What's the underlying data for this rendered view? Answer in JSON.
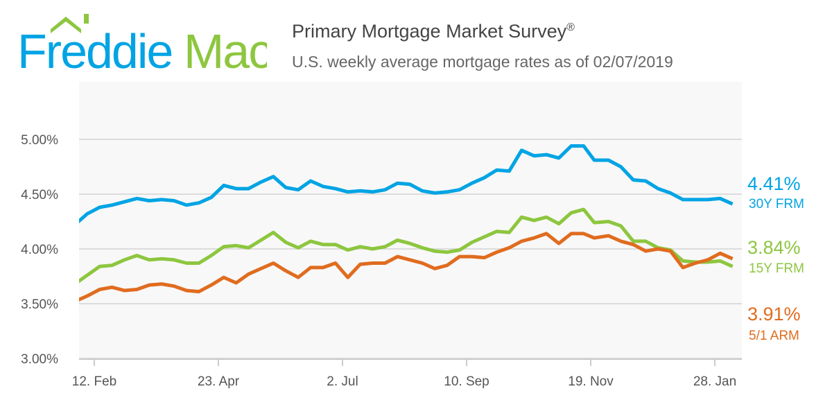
{
  "logo": {
    "text_part1": "Freddie",
    "text_part2": "Mac",
    "colors": {
      "blue": "#00a4e4",
      "green": "#8dc63f"
    }
  },
  "header": {
    "title": "Primary Mortgage Market Survey",
    "title_mark": "®",
    "subtitle": "U.S. weekly average mortgage rates as of 02/07/2019"
  },
  "chart_data": {
    "type": "line",
    "title": "Primary Mortgage Market Survey®",
    "subtitle": "U.S. weekly average mortgage rates as of 02/07/2019",
    "x": [
      "2018-02-01",
      "2018-02-08",
      "2018-02-15",
      "2018-02-22",
      "2018-03-01",
      "2018-03-08",
      "2018-03-15",
      "2018-03-22",
      "2018-03-29",
      "2018-04-05",
      "2018-04-12",
      "2018-04-19",
      "2018-04-26",
      "2018-05-03",
      "2018-05-10",
      "2018-05-17",
      "2018-05-24",
      "2018-05-31",
      "2018-06-07",
      "2018-06-14",
      "2018-06-21",
      "2018-06-28",
      "2018-07-05",
      "2018-07-12",
      "2018-07-19",
      "2018-07-26",
      "2018-08-02",
      "2018-08-09",
      "2018-08-16",
      "2018-08-23",
      "2018-08-30",
      "2018-09-06",
      "2018-09-13",
      "2018-09-20",
      "2018-09-27",
      "2018-10-04",
      "2018-10-11",
      "2018-10-18",
      "2018-10-25",
      "2018-11-01",
      "2018-11-08",
      "2018-11-15",
      "2018-11-21",
      "2018-11-29",
      "2018-12-06",
      "2018-12-13",
      "2018-12-20",
      "2018-12-27",
      "2019-01-03",
      "2019-01-10",
      "2019-01-17",
      "2019-01-24",
      "2019-01-31",
      "2019-02-07"
    ],
    "series": [
      {
        "name": "30Y FRM",
        "last_label": "4.41%",
        "color": "#00a4e4",
        "values": [
          4.22,
          4.32,
          4.38,
          4.4,
          4.43,
          4.46,
          4.44,
          4.45,
          4.44,
          4.4,
          4.42,
          4.47,
          4.58,
          4.55,
          4.55,
          4.61,
          4.66,
          4.56,
          4.54,
          4.62,
          4.57,
          4.55,
          4.52,
          4.53,
          4.52,
          4.54,
          4.6,
          4.59,
          4.53,
          4.51,
          4.52,
          4.54,
          4.6,
          4.65,
          4.72,
          4.71,
          4.9,
          4.85,
          4.86,
          4.83,
          4.94,
          4.94,
          4.81,
          4.81,
          4.75,
          4.63,
          4.62,
          4.55,
          4.51,
          4.45,
          4.45,
          4.45,
          4.46,
          4.41
        ]
      },
      {
        "name": "15Y FRM",
        "last_label": "3.84%",
        "color": "#8dc63f",
        "values": [
          3.68,
          3.76,
          3.84,
          3.85,
          3.9,
          3.94,
          3.9,
          3.91,
          3.9,
          3.87,
          3.87,
          3.94,
          4.02,
          4.03,
          4.01,
          4.08,
          4.15,
          4.06,
          4.01,
          4.07,
          4.04,
          4.04,
          3.99,
          4.02,
          4.0,
          4.02,
          4.08,
          4.05,
          4.01,
          3.98,
          3.97,
          3.99,
          4.06,
          4.11,
          4.16,
          4.15,
          4.29,
          4.26,
          4.29,
          4.23,
          4.33,
          4.36,
          4.24,
          4.25,
          4.21,
          4.07,
          4.07,
          4.01,
          3.99,
          3.89,
          3.88,
          3.88,
          3.89,
          3.84
        ]
      },
      {
        "name": "5/1 ARM",
        "last_label": "3.91%",
        "color": "#e06c1f",
        "values": [
          3.52,
          3.57,
          3.63,
          3.65,
          3.62,
          3.63,
          3.67,
          3.68,
          3.66,
          3.62,
          3.61,
          3.67,
          3.74,
          3.69,
          3.77,
          3.82,
          3.87,
          3.8,
          3.74,
          3.83,
          3.83,
          3.87,
          3.74,
          3.86,
          3.87,
          3.87,
          3.93,
          3.9,
          3.87,
          3.82,
          3.85,
          3.93,
          3.93,
          3.92,
          3.97,
          4.01,
          4.07,
          4.1,
          4.14,
          4.05,
          4.14,
          4.14,
          4.1,
          4.12,
          4.07,
          4.04,
          3.98,
          4.0,
          3.98,
          3.83,
          3.87,
          3.9,
          3.96,
          3.91
        ]
      }
    ],
    "y_ticks": [
      "3.00%",
      "3.50%",
      "4.00%",
      "4.50%",
      "5.00%"
    ],
    "y_tick_values": [
      3.0,
      3.5,
      4.0,
      4.5,
      5.0
    ],
    "x_ticks": [
      "12. Feb",
      "23. Apr",
      "2. Jul",
      "10. Sep",
      "19. Nov",
      "28. Jan"
    ],
    "x_tick_dates": [
      "2018-02-12",
      "2018-04-23",
      "2018-07-02",
      "2018-09-10",
      "2018-11-19",
      "2019-01-28"
    ],
    "ylim": [
      2.97,
      5.53
    ],
    "grid": true,
    "legend": "right, end labels"
  }
}
